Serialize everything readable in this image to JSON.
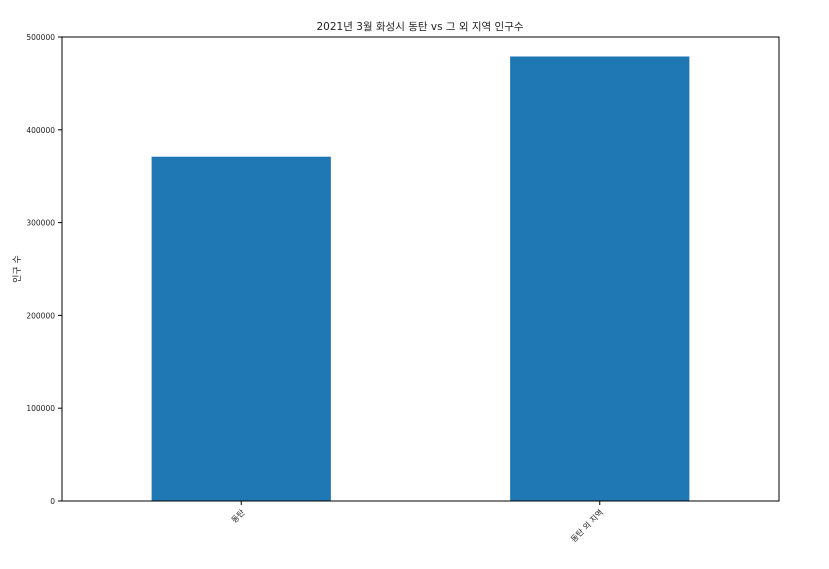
{
  "chart_data": {
    "type": "bar",
    "title": "2021년 3월 화성시 동탄 vs 그 외 지역 인구수",
    "xlabel": "",
    "ylabel": "인구 수",
    "categories": [
      "동탄",
      "동탄 외 지역"
    ],
    "values": [
      371000,
      479000
    ],
    "ylim": [
      0,
      500000
    ],
    "yticks": [
      0,
      100000,
      200000,
      300000,
      400000,
      500000
    ],
    "ytick_labels": [
      "0",
      "100000",
      "200000",
      "300000",
      "400000",
      "500000"
    ],
    "bar_color": "#1f77b4",
    "grid": false,
    "legend": "none"
  }
}
